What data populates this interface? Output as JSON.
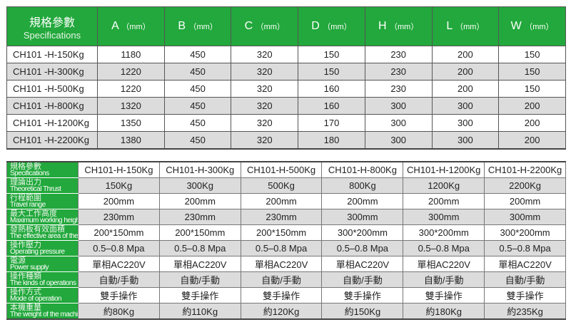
{
  "dimensions": {
    "header": {
      "zh": "規格參數",
      "en": "Specifications",
      "unit": "（mm）",
      "columns": [
        "A",
        "B",
        "C",
        "D",
        "H",
        "L",
        "W"
      ]
    },
    "rows": [
      {
        "model": "CH101 -H-150Kg",
        "values": [
          "1180",
          "450",
          "320",
          "150",
          "230",
          "200",
          "150"
        ]
      },
      {
        "model": "CH101 -H-300Kg",
        "values": [
          "1220",
          "450",
          "320",
          "150",
          "230",
          "200",
          "150"
        ]
      },
      {
        "model": "CH101 -H-500Kg",
        "values": [
          "1220",
          "450",
          "320",
          "160",
          "230",
          "200",
          "150"
        ]
      },
      {
        "model": "CH101 -H-800Kg",
        "values": [
          "1320",
          "450",
          "320",
          "160",
          "300",
          "300",
          "200"
        ]
      },
      {
        "model": "CH101 -H-1200Kg",
        "values": [
          "1350",
          "450",
          "320",
          "170",
          "300",
          "300",
          "200"
        ]
      },
      {
        "model": "CH101 -H-2200Kg",
        "values": [
          "1380",
          "450",
          "320",
          "180",
          "300",
          "300",
          "200"
        ]
      }
    ]
  },
  "specs": {
    "rows": [
      {
        "zh": "規格參數",
        "en": "Specifications",
        "values": [
          "CH101-H-150Kg",
          "CH101-H-300Kg",
          "CH101-H-500Kg",
          "CH101-H-800Kg",
          "CH101-H-1200Kg",
          "CH101-H-2200Kg"
        ]
      },
      {
        "zh": "理論出力",
        "en": "Theoretical Thrust",
        "values": [
          "150Kg",
          "300Kg",
          "500Kg",
          "800Kg",
          "1200Kg",
          "2200Kg"
        ]
      },
      {
        "zh": "行程範圍",
        "en": "Travel range",
        "values": [
          "200mm",
          "200mm",
          "200mm",
          "200mm",
          "200mm",
          "200mm"
        ]
      },
      {
        "zh": "最大工作高度",
        "en": "Maximum working height",
        "values": [
          "230mm",
          "230mm",
          "230mm",
          "300mm",
          "300mm",
          "300mm"
        ]
      },
      {
        "zh": "發熱板有效面積",
        "en": "The effective area of the heating plate",
        "values": [
          "200*150mm",
          "200*150mm",
          "200*150mm",
          "300*200mm",
          "300*200mm",
          "300*200mm"
        ]
      },
      {
        "zh": "操作壓力",
        "en": "Operating pressure",
        "values": [
          "0.5–0.8 Mpa",
          "0.5–0.8 Mpa",
          "0.5–0.8 Mpa",
          "0.5–0.8 Mpa",
          "0.5–0.8 Mpa",
          "0.5–0.8 Mpa"
        ]
      },
      {
        "zh": "電源",
        "en": "Power supply",
        "values": [
          "單相AC220V",
          "單相AC220V",
          "單相AC220V",
          "單相AC220V",
          "單相AC220V",
          "單相AC220V"
        ]
      },
      {
        "zh": "操作種類",
        "en": "The kinds of operations",
        "values": [
          "自動/手動",
          "自動/手動",
          "自動/手動",
          "自動/手動",
          "自動/手動",
          "自動/手動"
        ]
      },
      {
        "zh": "操作方式",
        "en": "Mode of operation",
        "values": [
          "雙手操作",
          "雙手操作",
          "雙手操作",
          "雙手操作",
          "雙手操作",
          "雙手操作"
        ]
      },
      {
        "zh": "本機重量",
        "en": "The weight of the machine",
        "values": [
          "約80Kg",
          "約110Kg",
          "約120Kg",
          "約150Kg",
          "約180Kg",
          "約235Kg"
        ]
      }
    ]
  },
  "colors": {
    "header_green": "#22a83c",
    "row_alt": "#dcdcdc"
  }
}
